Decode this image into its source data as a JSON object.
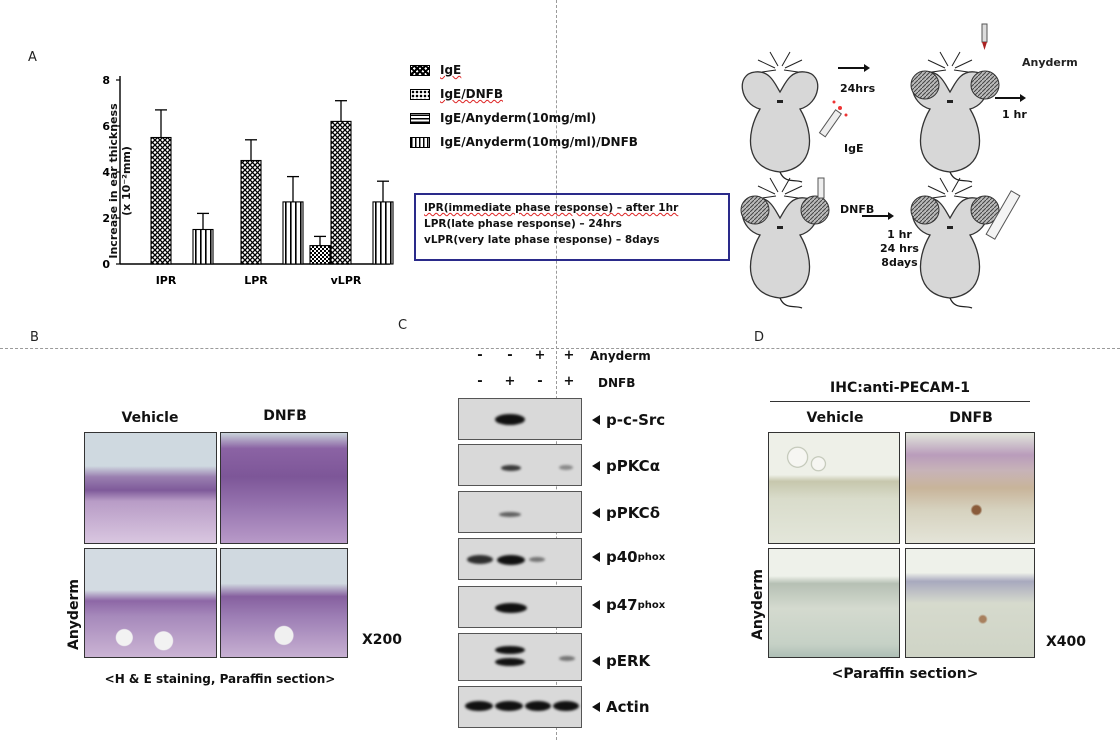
{
  "panels": {
    "a": "A",
    "b": "B",
    "c": "C",
    "d": "D"
  },
  "chart_data": {
    "type": "bar",
    "categories": [
      "IPR",
      "LPR",
      "vLPR"
    ],
    "series": [
      {
        "name": "IgE",
        "values": [
          0,
          0,
          0.8
        ],
        "errors": [
          0,
          0,
          0.4
        ]
      },
      {
        "name": "IgE/DNFB",
        "values": [
          5.5,
          4.5,
          6.2
        ],
        "errors": [
          1.2,
          0.9,
          0.9
        ]
      },
      {
        "name": "IgE/Anyderm(10mg/ml)",
        "values": [
          0,
          0,
          0
        ],
        "errors": [
          0,
          0,
          0
        ]
      },
      {
        "name": "IgE/Anyderm(10mg/ml)/DNFB",
        "values": [
          1.5,
          2.7,
          2.7
        ],
        "errors": [
          0.7,
          1.1,
          0.9
        ]
      }
    ],
    "ylabel_line1": "Increase in ear thickness",
    "ylabel_line2": "(x 10⁻²mm)",
    "ylim": [
      0,
      8
    ],
    "yticks": [
      "0",
      "2",
      "4",
      "6",
      "8"
    ],
    "legend_position": "right"
  },
  "info_box": {
    "line1": "IPR(immediate phase response) – after 1hr",
    "line2": "LPR(late phase response) – 24hrs",
    "line3": "vLPR(very late phase response) – 8days"
  },
  "schematic": {
    "ige": "IgE",
    "anyderm": "Anyderm",
    "t1": "24hrs",
    "t2": "1 hr",
    "dnfb": "DNFB",
    "t3a": "1 hr",
    "t3b": "24 hrs",
    "t3c": "8days"
  },
  "panel_b": {
    "col1": "Vehicle",
    "col2": "DNFB",
    "row2": "Anyderm",
    "mag": "X200",
    "caption": "<H & E staining, Paraffin section>"
  },
  "panel_c": {
    "anyderm_label": "Anyderm",
    "dnfb_label": "DNFB",
    "anyderm_signs": [
      "-",
      "-",
      "+",
      "+"
    ],
    "dnfb_signs": [
      "-",
      "+",
      "-",
      "+"
    ],
    "blots": [
      {
        "label": "p-c-Src",
        "sup": ""
      },
      {
        "label": "pPKCα",
        "sup": ""
      },
      {
        "label": "pPKCδ",
        "sup": ""
      },
      {
        "label": "p40",
        "sup": "phox"
      },
      {
        "label": "p47",
        "sup": "phox"
      },
      {
        "label": "pERK",
        "sup": ""
      },
      {
        "label": "Actin",
        "sup": ""
      }
    ]
  },
  "panel_d": {
    "title": "IHC:anti-PECAM-1",
    "col1": "Vehicle",
    "col2": "DNFB",
    "row2": "Anyderm",
    "mag": "X400",
    "caption": "<Paraffin section>"
  }
}
